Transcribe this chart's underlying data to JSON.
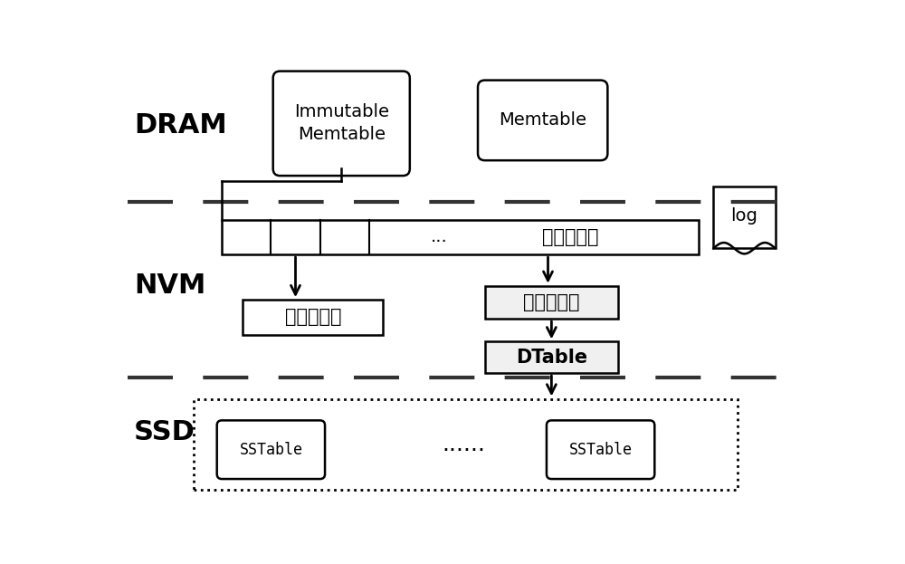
{
  "bg_color": "#ffffff",
  "text_color": "#000000",
  "figsize": [
    10.0,
    6.23
  ],
  "dpi": 100,
  "dram_label": "DRAM",
  "nvm_label": "NVM",
  "ssd_label": "SSD",
  "immutable_memtable_text": "Immutable\nMemtable",
  "memtable_text": "Memtable",
  "log_text": "log",
  "dir_hashtable_text": "目录哈希表",
  "file_hashtable_text": "文件哈希表",
  "meta_index_text": "元数据索引",
  "dtable_text": "DTable",
  "sstable_text": "SSTable",
  "dots_nvm": "...",
  "dots_ssd": "......"
}
